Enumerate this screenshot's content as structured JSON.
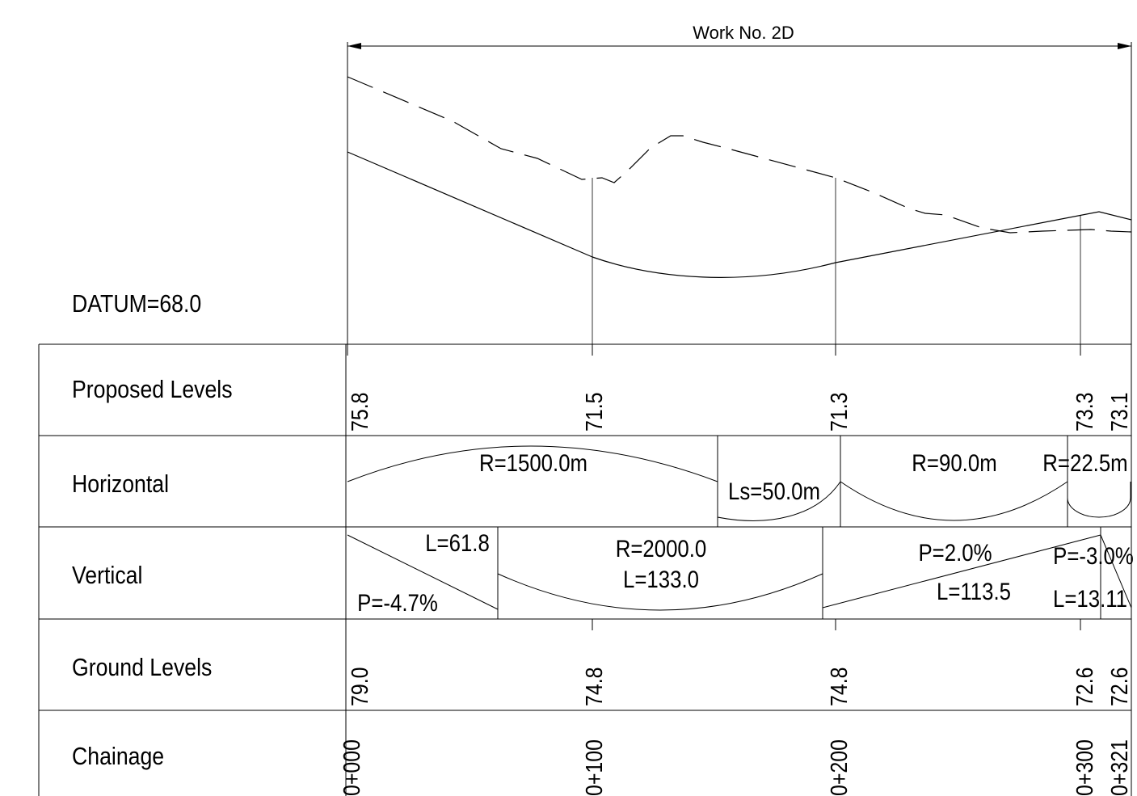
{
  "title": "Work No. 2D",
  "datum_label": "DATUM=68.0",
  "rows": [
    {
      "key": "proposed",
      "label": "Proposed Levels"
    },
    {
      "key": "horizontal",
      "label": "Horizontal"
    },
    {
      "key": "vertical",
      "label": "Vertical"
    },
    {
      "key": "ground",
      "label": "Ground Levels"
    },
    {
      "key": "chainage",
      "label": "Chainage"
    }
  ],
  "stations": [
    {
      "chainage": "0+000",
      "proposed": "75.8",
      "ground": "79.0"
    },
    {
      "chainage": "0+100",
      "proposed": "71.5",
      "ground": "74.8"
    },
    {
      "chainage": "0+200",
      "proposed": "71.3",
      "ground": "74.8"
    },
    {
      "chainage": "0+300",
      "proposed": "73.3",
      "ground": "72.6"
    },
    {
      "chainage": "0+321",
      "proposed": "73.1",
      "ground": "72.6"
    }
  ],
  "horizontal_elements": [
    {
      "label": "R=1500.0m"
    },
    {
      "label": "Ls=50.0m"
    },
    {
      "label": "R=90.0m"
    },
    {
      "label": "R=22.5m"
    }
  ],
  "vertical_elements": [
    {
      "grade": "P=-4.7%",
      "length": "L=61.8"
    },
    {
      "radius": "R=2000.0",
      "length": "L=133.0"
    },
    {
      "grade": "P=2.0%",
      "length": "L=113.5"
    },
    {
      "grade": "P=-3.0%",
      "length": "L=13.11"
    }
  ],
  "profile_series": [
    {
      "style": "solid",
      "role": "proposed"
    },
    {
      "style": "dashed",
      "role": "ground"
    }
  ]
}
